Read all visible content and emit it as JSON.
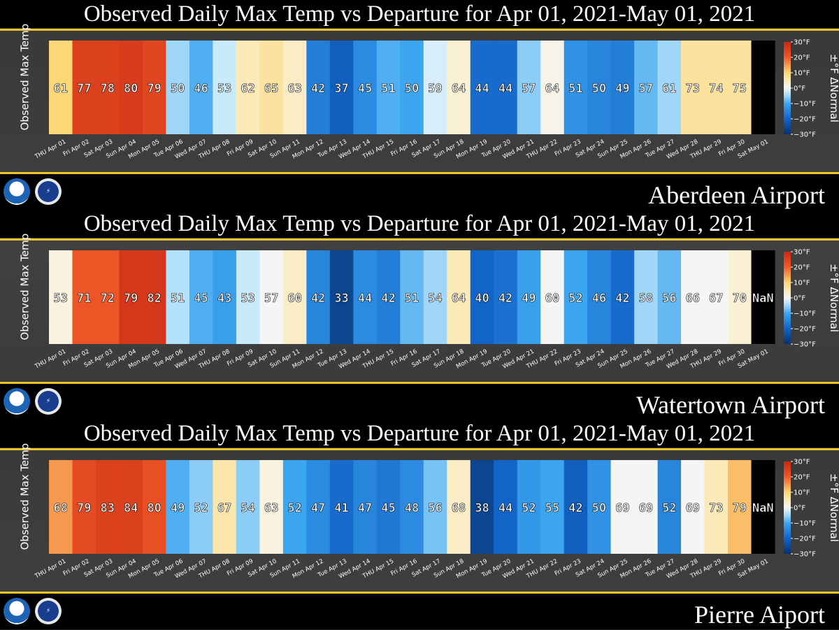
{
  "chart_data": [
    {
      "type": "heatmap",
      "title": "Observed Daily Max Temp vs Departure for Apr 01, 2021-May 01, 2021",
      "station": "Aberdeen Airport",
      "ylabel": "Observed Max Temp",
      "colorbar_label": "±°F ΔNormal",
      "categories": [
        "THU Apr 01",
        "Fri Apr 02",
        "Sat Apr 03",
        "Sun Apr 04",
        "Mon Apr 05",
        "Tue Apr 06",
        "Wed Apr 07",
        "THU Apr 08",
        "Fri Apr 09",
        "Sat Apr 10",
        "Sun Apr 11",
        "Mon Apr 12",
        "Tue Apr 13",
        "Wed Apr 14",
        "THU Apr 15",
        "Fri Apr 16",
        "Sat Apr 17",
        "Sun Apr 18",
        "Mon Apr 19",
        "Tue Apr 20",
        "Wed Apr 21",
        "THU Apr 22",
        "Fri Apr 23",
        "Sat Apr 24",
        "Sun Apr 25",
        "Mon Apr 26",
        "Tue Apr 27",
        "Wed Apr 28",
        "THU Apr 29",
        "Fri Apr 30",
        "Sat May 01"
      ],
      "values": [
        "61",
        "77",
        "78",
        "80",
        "79",
        "50",
        "46",
        "53",
        "62",
        "65",
        "63",
        "42",
        "37",
        "45",
        "51",
        "50",
        "59",
        "64",
        "44",
        "44",
        "57",
        "64",
        "51",
        "50",
        "49",
        "57",
        "61",
        "73",
        "74",
        "75",
        ""
      ],
      "departures": [
        10,
        25,
        25,
        26,
        24,
        -5,
        -9,
        -3,
        5,
        7,
        4,
        -16,
        -21,
        -14,
        -9,
        -10,
        -2,
        3,
        -19,
        -19,
        -6,
        1,
        -13,
        -15,
        -16,
        -8,
        -5,
        7,
        7,
        7,
        null
      ],
      "colorbar_ticks": [
        "30°F",
        "20°F",
        "10°F",
        "0°F",
        "−10°F",
        "−20°F",
        "−30°F"
      ],
      "colorbar_range": [
        -30,
        30
      ]
    },
    {
      "type": "heatmap",
      "title": "Observed Daily Max Temp vs Departure for Apr 01, 2021-May 01, 2021",
      "station": "Watertown Airport",
      "ylabel": "Observed Max Temp",
      "colorbar_label": "±°F ΔNormal",
      "categories": [
        "THU Apr 01",
        "Fri Apr 02",
        "Sat Apr 03",
        "Sun Apr 04",
        "Mon Apr 05",
        "Tue Apr 06",
        "Wed Apr 07",
        "THU Apr 08",
        "Fri Apr 09",
        "Sat Apr 10",
        "Sun Apr 11",
        "Mon Apr 12",
        "Tue Apr 13",
        "Wed Apr 14",
        "THU Apr 15",
        "Fri Apr 16",
        "Sat Apr 17",
        "Sun Apr 18",
        "Mon Apr 19",
        "Tue Apr 20",
        "Wed Apr 21",
        "THU Apr 22",
        "Fri Apr 23",
        "Sat Apr 24",
        "Sun Apr 25",
        "Mon Apr 26",
        "Tue Apr 27",
        "Wed Apr 28",
        "THU Apr 29",
        "Fri Apr 30",
        "Sat May 01"
      ],
      "values": [
        "53",
        "71",
        "72",
        "79",
        "82",
        "51",
        "45",
        "43",
        "53",
        "57",
        "60",
        "42",
        "33",
        "44",
        "42",
        "51",
        "54",
        "64",
        "40",
        "42",
        "49",
        "60",
        "52",
        "46",
        "42",
        "58",
        "56",
        "66",
        "67",
        "70",
        "NaN"
      ],
      "departures": [
        2,
        21,
        21,
        27,
        27,
        -4,
        -9,
        -11,
        -3,
        0,
        4,
        -15,
        -26,
        -14,
        -16,
        -8,
        -5,
        5,
        -20,
        -18,
        -11,
        0,
        -10,
        -15,
        -19,
        -5,
        -8,
        0,
        0,
        3,
        null
      ],
      "colorbar_ticks": [
        "30°F",
        "20°F",
        "10°F",
        "0°F",
        "−10°F",
        "−20°F",
        "−30°F"
      ],
      "colorbar_range": [
        -30,
        30
      ]
    },
    {
      "type": "heatmap",
      "title": "Observed Daily Max Temp vs Departure for Apr 01, 2021-May 01, 2021",
      "station": "Pierre Aiport",
      "ylabel": "Observed Max Temp",
      "colorbar_label": "±°F ΔNormal",
      "categories": [
        "THU Apr 01",
        "Fri Apr 02",
        "Sat Apr 03",
        "Sun Apr 04",
        "Mon Apr 05",
        "Tue Apr 06",
        "Wed Apr 07",
        "THU Apr 08",
        "Fri Apr 09",
        "Sat Apr 10",
        "Sun Apr 11",
        "Mon Apr 12",
        "Tue Apr 13",
        "Wed Apr 14",
        "THU Apr 15",
        "Fri Apr 16",
        "Sat Apr 17",
        "Sun Apr 18",
        "Mon Apr 19",
        "Tue Apr 20",
        "Wed Apr 21",
        "THU Apr 22",
        "Fri Apr 23",
        "Sat Apr 24",
        "Sun Apr 25",
        "Mon Apr 26",
        "Tue Apr 27",
        "Wed Apr 28",
        "THU Apr 29",
        "Fri Apr 30",
        "Sat May 01"
      ],
      "values": [
        "68",
        "79",
        "83",
        "84",
        "80",
        "49",
        "52",
        "67",
        "54",
        "63",
        "52",
        "47",
        "41",
        "47",
        "45",
        "48",
        "56",
        "68",
        "38",
        "44",
        "52",
        "55",
        "42",
        "50",
        "69",
        "69",
        "52",
        "69",
        "73",
        "79",
        "NaN"
      ],
      "departures": [
        15,
        23,
        25,
        25,
        22,
        -9,
        -6,
        6,
        -6,
        2,
        -10,
        -14,
        -19,
        -15,
        -17,
        -14,
        -7,
        4,
        -26,
        -20,
        -12,
        -10,
        -21,
        -13,
        0,
        0,
        -15,
        0,
        5,
        12,
        null
      ],
      "colorbar_ticks": [
        "30°F",
        "20°F",
        "10°F",
        "0°F",
        "−10°F",
        "−20°F",
        "−30°F"
      ],
      "colorbar_range": [
        -30,
        30
      ]
    }
  ],
  "colors": {
    "accent_line": "#f2c12e",
    "missing": "#000000"
  },
  "icons": [
    "noaa-logo",
    "nws-logo"
  ]
}
